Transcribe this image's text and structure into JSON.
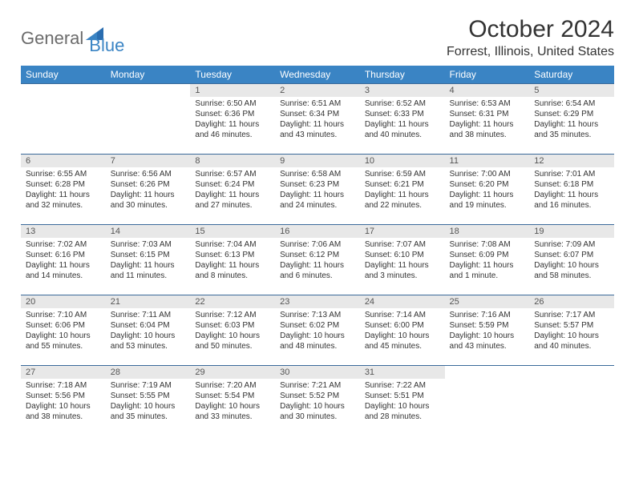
{
  "brand": {
    "part1": "General",
    "part2": "Blue"
  },
  "title": "October 2024",
  "location": "Forrest, Illinois, United States",
  "colors": {
    "header_bg": "#3a84c4",
    "header_text": "#ffffff",
    "row_border": "#3a6a9a",
    "daynum_bg": "#e8e8e8",
    "text": "#333333",
    "logo_gray": "#6b6b6b",
    "logo_blue": "#3a84c4"
  },
  "weekdays": [
    "Sunday",
    "Monday",
    "Tuesday",
    "Wednesday",
    "Thursday",
    "Friday",
    "Saturday"
  ],
  "weeks": [
    [
      null,
      null,
      {
        "n": "1",
        "sr": "Sunrise: 6:50 AM",
        "ss": "Sunset: 6:36 PM",
        "dl1": "Daylight: 11 hours",
        "dl2": "and 46 minutes."
      },
      {
        "n": "2",
        "sr": "Sunrise: 6:51 AM",
        "ss": "Sunset: 6:34 PM",
        "dl1": "Daylight: 11 hours",
        "dl2": "and 43 minutes."
      },
      {
        "n": "3",
        "sr": "Sunrise: 6:52 AM",
        "ss": "Sunset: 6:33 PM",
        "dl1": "Daylight: 11 hours",
        "dl2": "and 40 minutes."
      },
      {
        "n": "4",
        "sr": "Sunrise: 6:53 AM",
        "ss": "Sunset: 6:31 PM",
        "dl1": "Daylight: 11 hours",
        "dl2": "and 38 minutes."
      },
      {
        "n": "5",
        "sr": "Sunrise: 6:54 AM",
        "ss": "Sunset: 6:29 PM",
        "dl1": "Daylight: 11 hours",
        "dl2": "and 35 minutes."
      }
    ],
    [
      {
        "n": "6",
        "sr": "Sunrise: 6:55 AM",
        "ss": "Sunset: 6:28 PM",
        "dl1": "Daylight: 11 hours",
        "dl2": "and 32 minutes."
      },
      {
        "n": "7",
        "sr": "Sunrise: 6:56 AM",
        "ss": "Sunset: 6:26 PM",
        "dl1": "Daylight: 11 hours",
        "dl2": "and 30 minutes."
      },
      {
        "n": "8",
        "sr": "Sunrise: 6:57 AM",
        "ss": "Sunset: 6:24 PM",
        "dl1": "Daylight: 11 hours",
        "dl2": "and 27 minutes."
      },
      {
        "n": "9",
        "sr": "Sunrise: 6:58 AM",
        "ss": "Sunset: 6:23 PM",
        "dl1": "Daylight: 11 hours",
        "dl2": "and 24 minutes."
      },
      {
        "n": "10",
        "sr": "Sunrise: 6:59 AM",
        "ss": "Sunset: 6:21 PM",
        "dl1": "Daylight: 11 hours",
        "dl2": "and 22 minutes."
      },
      {
        "n": "11",
        "sr": "Sunrise: 7:00 AM",
        "ss": "Sunset: 6:20 PM",
        "dl1": "Daylight: 11 hours",
        "dl2": "and 19 minutes."
      },
      {
        "n": "12",
        "sr": "Sunrise: 7:01 AM",
        "ss": "Sunset: 6:18 PM",
        "dl1": "Daylight: 11 hours",
        "dl2": "and 16 minutes."
      }
    ],
    [
      {
        "n": "13",
        "sr": "Sunrise: 7:02 AM",
        "ss": "Sunset: 6:16 PM",
        "dl1": "Daylight: 11 hours",
        "dl2": "and 14 minutes."
      },
      {
        "n": "14",
        "sr": "Sunrise: 7:03 AM",
        "ss": "Sunset: 6:15 PM",
        "dl1": "Daylight: 11 hours",
        "dl2": "and 11 minutes."
      },
      {
        "n": "15",
        "sr": "Sunrise: 7:04 AM",
        "ss": "Sunset: 6:13 PM",
        "dl1": "Daylight: 11 hours",
        "dl2": "and 8 minutes."
      },
      {
        "n": "16",
        "sr": "Sunrise: 7:06 AM",
        "ss": "Sunset: 6:12 PM",
        "dl1": "Daylight: 11 hours",
        "dl2": "and 6 minutes."
      },
      {
        "n": "17",
        "sr": "Sunrise: 7:07 AM",
        "ss": "Sunset: 6:10 PM",
        "dl1": "Daylight: 11 hours",
        "dl2": "and 3 minutes."
      },
      {
        "n": "18",
        "sr": "Sunrise: 7:08 AM",
        "ss": "Sunset: 6:09 PM",
        "dl1": "Daylight: 11 hours",
        "dl2": "and 1 minute."
      },
      {
        "n": "19",
        "sr": "Sunrise: 7:09 AM",
        "ss": "Sunset: 6:07 PM",
        "dl1": "Daylight: 10 hours",
        "dl2": "and 58 minutes."
      }
    ],
    [
      {
        "n": "20",
        "sr": "Sunrise: 7:10 AM",
        "ss": "Sunset: 6:06 PM",
        "dl1": "Daylight: 10 hours",
        "dl2": "and 55 minutes."
      },
      {
        "n": "21",
        "sr": "Sunrise: 7:11 AM",
        "ss": "Sunset: 6:04 PM",
        "dl1": "Daylight: 10 hours",
        "dl2": "and 53 minutes."
      },
      {
        "n": "22",
        "sr": "Sunrise: 7:12 AM",
        "ss": "Sunset: 6:03 PM",
        "dl1": "Daylight: 10 hours",
        "dl2": "and 50 minutes."
      },
      {
        "n": "23",
        "sr": "Sunrise: 7:13 AM",
        "ss": "Sunset: 6:02 PM",
        "dl1": "Daylight: 10 hours",
        "dl2": "and 48 minutes."
      },
      {
        "n": "24",
        "sr": "Sunrise: 7:14 AM",
        "ss": "Sunset: 6:00 PM",
        "dl1": "Daylight: 10 hours",
        "dl2": "and 45 minutes."
      },
      {
        "n": "25",
        "sr": "Sunrise: 7:16 AM",
        "ss": "Sunset: 5:59 PM",
        "dl1": "Daylight: 10 hours",
        "dl2": "and 43 minutes."
      },
      {
        "n": "26",
        "sr": "Sunrise: 7:17 AM",
        "ss": "Sunset: 5:57 PM",
        "dl1": "Daylight: 10 hours",
        "dl2": "and 40 minutes."
      }
    ],
    [
      {
        "n": "27",
        "sr": "Sunrise: 7:18 AM",
        "ss": "Sunset: 5:56 PM",
        "dl1": "Daylight: 10 hours",
        "dl2": "and 38 minutes."
      },
      {
        "n": "28",
        "sr": "Sunrise: 7:19 AM",
        "ss": "Sunset: 5:55 PM",
        "dl1": "Daylight: 10 hours",
        "dl2": "and 35 minutes."
      },
      {
        "n": "29",
        "sr": "Sunrise: 7:20 AM",
        "ss": "Sunset: 5:54 PM",
        "dl1": "Daylight: 10 hours",
        "dl2": "and 33 minutes."
      },
      {
        "n": "30",
        "sr": "Sunrise: 7:21 AM",
        "ss": "Sunset: 5:52 PM",
        "dl1": "Daylight: 10 hours",
        "dl2": "and 30 minutes."
      },
      {
        "n": "31",
        "sr": "Sunrise: 7:22 AM",
        "ss": "Sunset: 5:51 PM",
        "dl1": "Daylight: 10 hours",
        "dl2": "and 28 minutes."
      },
      null,
      null
    ]
  ]
}
